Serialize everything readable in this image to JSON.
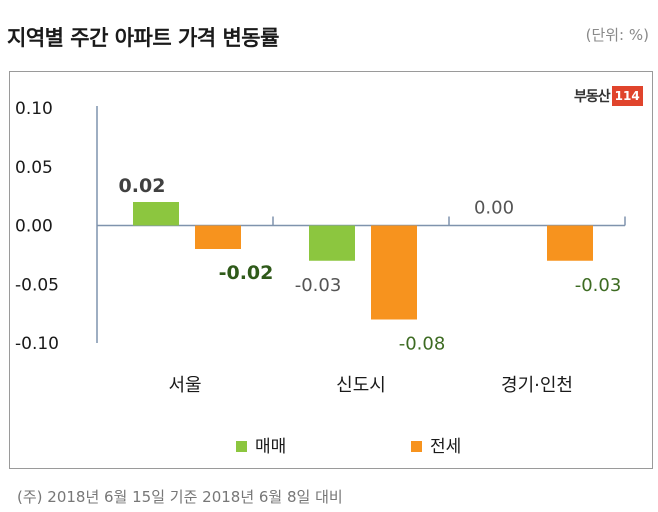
{
  "header": {
    "title": "지역별 주간 아파트 가격 변동률",
    "unit": "(단위: %)"
  },
  "logo": {
    "word": "부동산",
    "number": "114"
  },
  "footnote": "(주) 2018년 6월 15일 기준 2018년 6월 8일 대비",
  "chart_data": {
    "type": "bar",
    "categories": [
      "서울",
      "신도시",
      "경기·인천"
    ],
    "series": [
      {
        "name": "매매",
        "color": "#8cc63f",
        "values": [
          0.02,
          -0.03,
          0.0
        ],
        "labels": [
          "0.02",
          "-0.03",
          "0.00"
        ]
      },
      {
        "name": "전세",
        "color": "#f7931e",
        "values": [
          -0.02,
          -0.08,
          -0.03
        ],
        "labels": [
          "-0.02",
          "-0.08",
          "-0.03"
        ]
      }
    ],
    "ylim": [
      -0.1,
      0.1
    ],
    "yticks": [
      "0.10",
      "0.05",
      "0.00",
      "-0.05",
      "-0.10"
    ],
    "ytick_values": [
      0.1,
      0.05,
      0.0,
      -0.05,
      -0.1
    ],
    "legend_position": "bottom"
  }
}
